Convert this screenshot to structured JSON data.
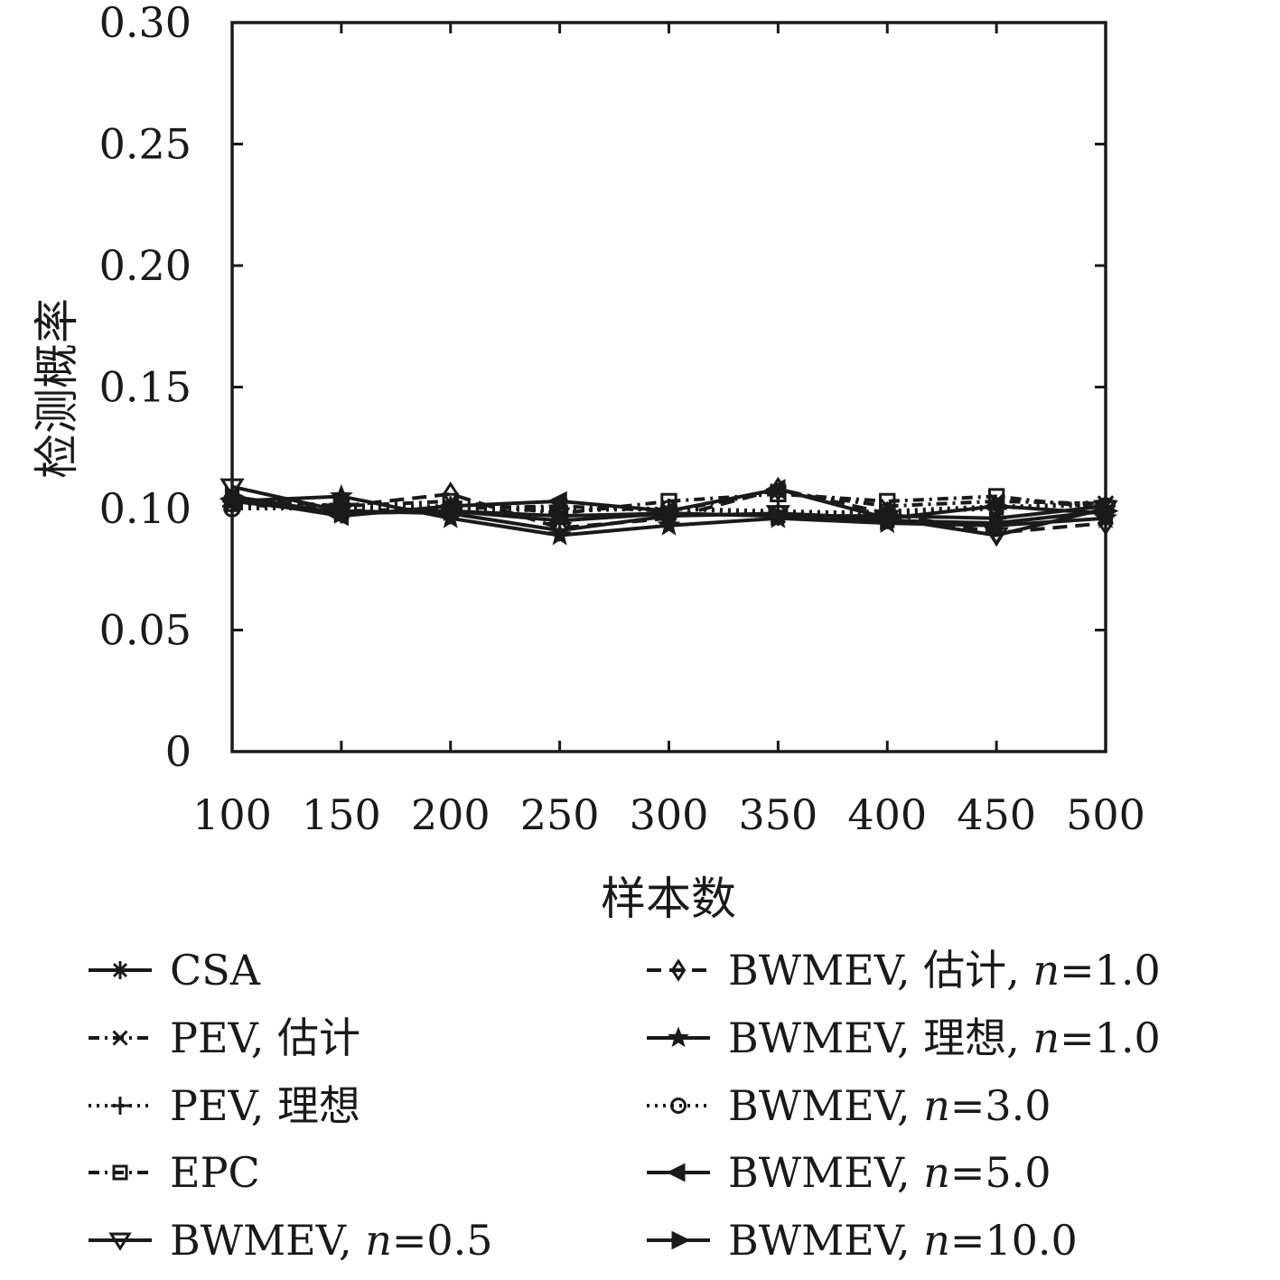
{
  "chart_data": {
    "type": "line",
    "xlabel": "样本数",
    "ylabel": "检测概率",
    "x": [
      100,
      150,
      200,
      250,
      300,
      350,
      400,
      450,
      500
    ],
    "xticks": [
      "100",
      "150",
      "200",
      "250",
      "300",
      "350",
      "400",
      "450",
      "500"
    ],
    "yticks": [
      "0",
      "0.05",
      "0.10",
      "0.15",
      "0.20",
      "0.25",
      "0.30"
    ],
    "xlim": [
      100,
      500
    ],
    "ylim": [
      0,
      0.3
    ],
    "grid": false,
    "legend_position": "bottom",
    "series": [
      {
        "name": "CSA",
        "marker": "asterisk",
        "dash": "solid",
        "values": [
          0.103,
          0.098,
          0.099,
          0.095,
          0.098,
          0.097,
          0.097,
          0.096,
          0.101
        ]
      },
      {
        "name_parts": [
          "PEV, 估计"
        ],
        "name": "PEV, 估计",
        "marker": "x",
        "dash": "dashdot",
        "values": [
          0.102,
          0.099,
          0.1,
          0.101,
          0.099,
          0.107,
          0.101,
          0.103,
          0.102
        ]
      },
      {
        "name": "PEV, 理想",
        "marker": "plus",
        "dash": "dotted",
        "values": [
          0.101,
          0.101,
          0.101,
          0.1,
          0.1,
          0.099,
          0.098,
          0.1,
          0.103
        ]
      },
      {
        "name": "EPC",
        "marker": "square",
        "dash": "dashdot",
        "values": [
          0.102,
          0.101,
          0.103,
          0.098,
          0.103,
          0.106,
          0.103,
          0.105,
          0.1
        ]
      },
      {
        "name": "BWMEV, n=0.5",
        "label_pre": "BWMEV, ",
        "label_math": "n",
        "label_post": "=0.5",
        "marker": "triangle-down",
        "dash": "solid",
        "values": [
          0.109,
          0.099,
          0.098,
          0.091,
          0.097,
          0.098,
          0.096,
          0.089,
          0.1
        ]
      },
      {
        "name": "BWMEV, 估计, n=1.0",
        "label_pre": "BWMEV, 估计, ",
        "label_math": "n",
        "label_post": "=1.0",
        "marker": "diamond",
        "dash": "dashed",
        "values": [
          0.104,
          0.101,
          0.106,
          0.092,
          0.096,
          0.108,
          0.098,
          0.09,
          0.094
        ]
      },
      {
        "name": "BWMEV, 理想, n=1.0",
        "label_pre": "BWMEV, 理想, ",
        "label_math": "n",
        "label_post": "=1.0",
        "marker": "star",
        "dash": "solid",
        "values": [
          0.103,
          0.105,
          0.096,
          0.089,
          0.093,
          0.096,
          0.094,
          0.093,
          0.096
        ]
      },
      {
        "name": "BWMEV, n=3.0",
        "label_pre": "BWMEV, ",
        "label_math": "n",
        "label_post": "=3.0",
        "marker": "circle",
        "dash": "dotted",
        "values": [
          0.1,
          0.1,
          0.1,
          0.099,
          0.1,
          0.098,
          0.099,
          0.101,
          0.101
        ]
      },
      {
        "name": "BWMEV, n=5.0",
        "label_pre": "BWMEV, ",
        "label_math": "n",
        "label_post": "=5.0",
        "marker": "triangle-left",
        "dash": "solid",
        "values": [
          0.104,
          0.097,
          0.101,
          0.103,
          0.099,
          0.108,
          0.096,
          0.101,
          0.098
        ]
      },
      {
        "name": "BWMEV, n=10.0",
        "label_pre": "BWMEV, ",
        "label_math": "n",
        "label_post": "=10.0",
        "marker": "triangle-right",
        "dash": "solid",
        "values": [
          0.105,
          0.098,
          0.099,
          0.097,
          0.098,
          0.097,
          0.095,
          0.094,
          0.099
        ]
      }
    ]
  }
}
